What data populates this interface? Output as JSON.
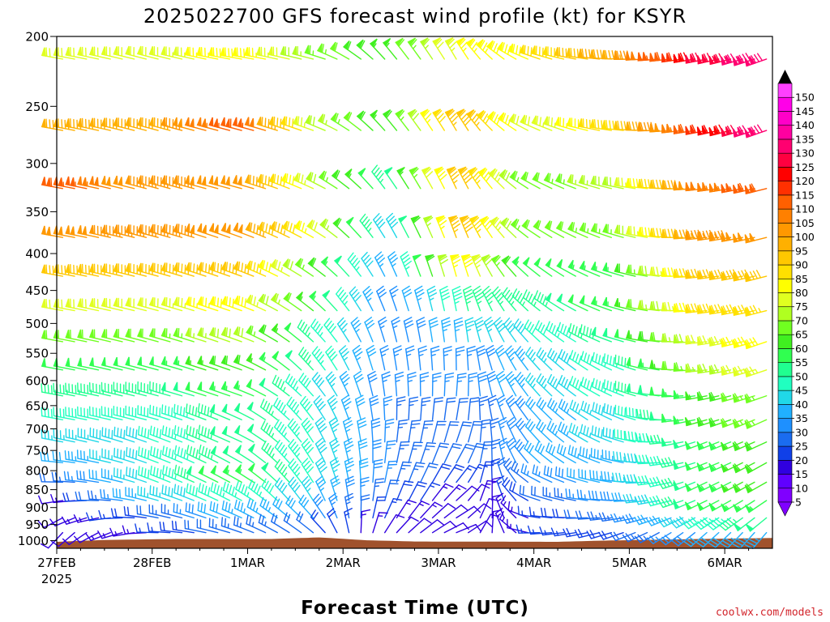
{
  "chart_data": {
    "type": "wind-barb-profile",
    "title": "2025022700 GFS forecast wind profile (kt) for KSYR",
    "xlabel": "Forecast Time (UTC)",
    "ylabel": "",
    "x_ticks": [
      "27FEB",
      "28FEB",
      "1MAR",
      "2MAR",
      "3MAR",
      "4MAR",
      "5MAR",
      "6MAR"
    ],
    "x_year_label": "2025",
    "x_range_hours": [
      0,
      180
    ],
    "x_step_hours": 3,
    "y_ticks": [
      200,
      250,
      300,
      350,
      400,
      450,
      500,
      550,
      600,
      650,
      700,
      750,
      800,
      850,
      900,
      950,
      1000
    ],
    "y_scale": "log",
    "y_range_hpa": [
      200,
      1025
    ],
    "barb_levels_hpa": [
      215,
      270,
      325,
      380,
      430,
      480,
      530,
      580,
      630,
      680,
      730,
      780,
      830,
      880,
      930,
      975,
      1010
    ],
    "colorbar": {
      "ticks": [
        5,
        10,
        15,
        20,
        25,
        30,
        35,
        40,
        45,
        50,
        55,
        60,
        65,
        70,
        75,
        80,
        85,
        90,
        95,
        100,
        105,
        110,
        115,
        120,
        125,
        130,
        135,
        140,
        145,
        150
      ],
      "colors": [
        "#8000ff",
        "#6000ff",
        "#3000e0",
        "#1040e8",
        "#1a6cf0",
        "#1e90ff",
        "#20b0ff",
        "#20d8e8",
        "#20ffc0",
        "#20ff90",
        "#30ff50",
        "#40f020",
        "#70ff20",
        "#b0ff20",
        "#e0ff20",
        "#ffff00",
        "#ffe000",
        "#ffc800",
        "#ffb000",
        "#ff9800",
        "#ff8000",
        "#ff6000",
        "#ff3000",
        "#ff0000",
        "#ff0040",
        "#ff0070",
        "#ff00a0",
        "#ff00c8",
        "#ff00e8",
        "#ff40ff"
      ]
    },
    "terrain": {
      "color": "#a0522d",
      "surface_pressure_hpa_keyframes": [
        [
          0,
          1004
        ],
        [
          12,
          998
        ],
        [
          30,
          995
        ],
        [
          54,
          995
        ],
        [
          66,
          990
        ],
        [
          78,
          999
        ],
        [
          90,
          1003
        ],
        [
          126,
          1004
        ],
        [
          138,
          1000
        ],
        [
          162,
          995
        ],
        [
          180,
          992
        ]
      ]
    },
    "wind_keyframes": {
      "times_hours": [
        0,
        24,
        48,
        66,
        84,
        102,
        120,
        144,
        162,
        180
      ],
      "levels_hpa": [
        215,
        270,
        325,
        380,
        430,
        480,
        530,
        580,
        630,
        680,
        730,
        780,
        830,
        880,
        930,
        975,
        1010
      ],
      "direction_deg": [
        [
          280,
          285,
          280,
          285,
          320,
          330,
          290,
          270,
          260,
          250
        ],
        [
          280,
          285,
          285,
          290,
          320,
          330,
          295,
          275,
          260,
          250
        ],
        [
          280,
          285,
          285,
          295,
          325,
          335,
          300,
          280,
          265,
          255
        ],
        [
          280,
          285,
          290,
          300,
          330,
          340,
          305,
          285,
          265,
          255
        ],
        [
          280,
          285,
          290,
          305,
          335,
          345,
          310,
          285,
          265,
          255
        ],
        [
          280,
          285,
          290,
          310,
          340,
          350,
          310,
          285,
          265,
          255
        ],
        [
          280,
          285,
          290,
          315,
          345,
          355,
          315,
          285,
          265,
          250
        ],
        [
          280,
          285,
          290,
          320,
          350,
          0,
          320,
          290,
          265,
          250
        ],
        [
          280,
          285,
          290,
          320,
          355,
          5,
          320,
          290,
          260,
          250
        ],
        [
          280,
          285,
          295,
          325,
          0,
          10,
          320,
          290,
          255,
          245
        ],
        [
          280,
          290,
          295,
          330,
          5,
          20,
          320,
          285,
          250,
          245
        ],
        [
          275,
          290,
          300,
          330,
          10,
          30,
          315,
          280,
          250,
          240
        ],
        [
          270,
          290,
          300,
          330,
          15,
          40,
          300,
          275,
          245,
          240
        ],
        [
          260,
          285,
          300,
          330,
          20,
          50,
          290,
          270,
          245,
          235
        ],
        [
          240,
          280,
          295,
          320,
          30,
          60,
          280,
          260,
          240,
          230
        ],
        [
          220,
          270,
          290,
          310,
          40,
          70,
          270,
          250,
          230,
          220
        ],
        [
          200,
          260,
          280,
          300,
          45,
          70,
          260,
          240,
          220,
          210
        ]
      ],
      "speed_kt": [
        [
          70,
          70,
          80,
          65,
          55,
          75,
          80,
          95,
          120,
          130
        ],
        [
          90,
          90,
          110,
          70,
          55,
          90,
          70,
          85,
          110,
          130
        ],
        [
          110,
          95,
          100,
          70,
          45,
          90,
          60,
          70,
          100,
          110
        ],
        [
          100,
          95,
          100,
          75,
          35,
          90,
          60,
          65,
          95,
          100
        ],
        [
          85,
          85,
          90,
          60,
          30,
          80,
          50,
          55,
          85,
          90
        ],
        [
          70,
          70,
          80,
          55,
          25,
          45,
          45,
          55,
          80,
          85
        ],
        [
          60,
          60,
          70,
          45,
          25,
          35,
          40,
          50,
          70,
          80
        ],
        [
          50,
          50,
          60,
          45,
          25,
          25,
          35,
          45,
          65,
          75
        ],
        [
          45,
          45,
          55,
          40,
          25,
          25,
          35,
          45,
          55,
          65
        ],
        [
          40,
          40,
          50,
          40,
          25,
          20,
          30,
          40,
          55,
          65
        ],
        [
          35,
          40,
          50,
          40,
          25,
          20,
          30,
          40,
          50,
          60
        ],
        [
          30,
          40,
          50,
          40,
          25,
          20,
          30,
          35,
          50,
          60
        ],
        [
          20,
          40,
          55,
          40,
          25,
          15,
          25,
          35,
          50,
          60
        ],
        [
          10,
          35,
          45,
          35,
          20,
          10,
          20,
          30,
          50,
          55
        ],
        [
          10,
          20,
          35,
          30,
          15,
          10,
          15,
          25,
          40,
          50
        ],
        [
          10,
          15,
          25,
          20,
          10,
          10,
          15,
          20,
          30,
          35
        ],
        [
          10,
          10,
          15,
          15,
          5,
          5,
          10,
          15,
          20,
          25
        ]
      ]
    }
  },
  "credit": "coolwx.com/models"
}
